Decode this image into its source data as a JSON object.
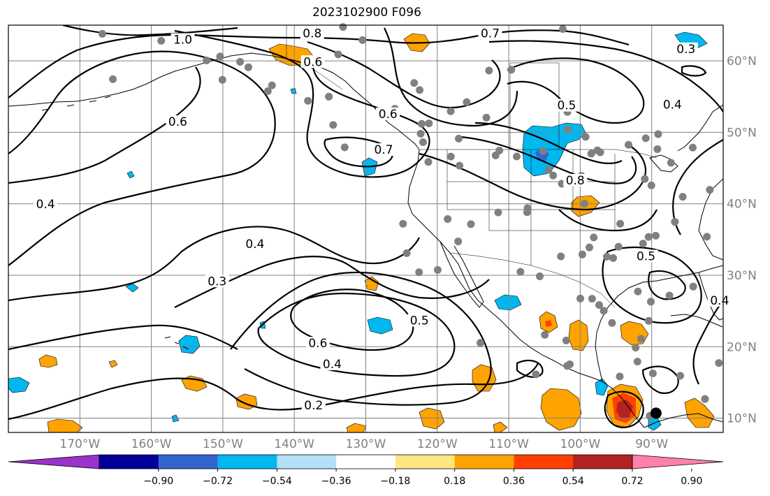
{
  "title": "2023102900 F096",
  "map": {
    "projection": "equirectangular",
    "lon_range": [
      -180,
      -80
    ],
    "lat_range": [
      8,
      65
    ],
    "gridlines": true,
    "lon_ticks": [
      -170,
      -160,
      -150,
      -140,
      -130,
      -120,
      -110,
      -100,
      -90
    ],
    "lon_labels": [
      "170°W",
      "160°W",
      "150°W",
      "140°W",
      "130°W",
      "120°W",
      "110°W",
      "100°W",
      "90°W"
    ],
    "lat_ticks": [
      10,
      20,
      30,
      40,
      50,
      60
    ],
    "lat_labels": [
      "10°N",
      "20°N",
      "30°N",
      "40°N",
      "50°N",
      "60°N"
    ],
    "contour_labels": [
      {
        "text": "1.0",
        "lon": -155.6,
        "lat": 62.6
      },
      {
        "text": "0.8",
        "lon": -137.5,
        "lat": 63.5
      },
      {
        "text": "0.6",
        "lon": -137.4,
        "lat": 59.5
      },
      {
        "text": "0.7",
        "lon": -112.6,
        "lat": 63.5
      },
      {
        "text": "0.3",
        "lon": -85.2,
        "lat": 61.3
      },
      {
        "text": "0.4",
        "lon": -87.1,
        "lat": 53.5
      },
      {
        "text": "0.5",
        "lon": -101.9,
        "lat": 53.4
      },
      {
        "text": "0.6",
        "lon": -156.3,
        "lat": 51.1
      },
      {
        "text": "0.6",
        "lon": -126.9,
        "lat": 52.2
      },
      {
        "text": "0.7",
        "lon": -127.5,
        "lat": 47.2
      },
      {
        "text": "0.8",
        "lon": -100.7,
        "lat": 42.9
      },
      {
        "text": "0.4",
        "lon": -174.8,
        "lat": 39.6
      },
      {
        "text": "0.4",
        "lon": -145.5,
        "lat": 34.0
      },
      {
        "text": "0.3",
        "lon": -150.8,
        "lat": 28.8
      },
      {
        "text": "0.5",
        "lon": -122.5,
        "lat": 23.3
      },
      {
        "text": "0.6",
        "lon": -136.7,
        "lat": 20.1
      },
      {
        "text": "0.4",
        "lon": -134.7,
        "lat": 17.2
      },
      {
        "text": "0.2",
        "lon": -137.3,
        "lat": 11.4
      },
      {
        "text": "0.5",
        "lon": -90.8,
        "lat": 32.3
      },
      {
        "text": "0.4",
        "lon": -80.5,
        "lat": 26.1
      }
    ],
    "station_count_visible": 110,
    "marker": {
      "lon": -89.4,
      "lat": 10.7,
      "color": "#000000"
    }
  },
  "colorbar": {
    "colors": [
      "#9933cc",
      "#000099",
      "#3366cc",
      "#00b8f0",
      "#b3e0f7",
      "#ffffff",
      "#ffe680",
      "#ffa300",
      "#ff4000",
      "#b22222",
      "#ff80a8"
    ],
    "tick_labels": [
      "−0.90",
      "−0.72",
      "−0.54",
      "−0.36",
      "−0.18",
      "0.18",
      "0.36",
      "0.54",
      "0.72",
      "0.90"
    ],
    "extend": "both"
  },
  "colors": {
    "grid": "#808080",
    "contour": "#000000",
    "station": "#808080"
  }
}
